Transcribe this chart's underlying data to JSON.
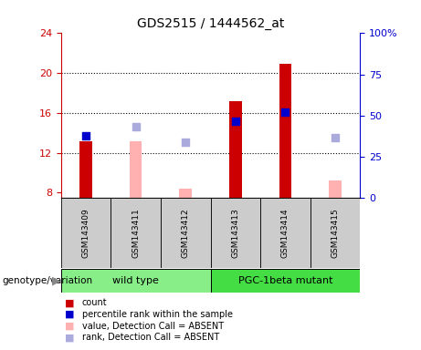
{
  "title": "GDS2515 / 1444562_at",
  "samples": [
    "GSM143409",
    "GSM143411",
    "GSM143412",
    "GSM143413",
    "GSM143414",
    "GSM143415"
  ],
  "red_bars": [
    13.2,
    null,
    null,
    17.2,
    20.9,
    null
  ],
  "blue_squares": [
    13.7,
    null,
    null,
    15.2,
    16.1,
    null
  ],
  "pink_bars": [
    null,
    13.2,
    8.4,
    null,
    null,
    9.2
  ],
  "lavender_squares": [
    null,
    14.6,
    13.1,
    null,
    null,
    13.5
  ],
  "ylim_left": [
    7.5,
    24
  ],
  "ylim_right": [
    0,
    100
  ],
  "yticks_left": [
    8,
    12,
    16,
    20,
    24
  ],
  "yticks_right": [
    0,
    25,
    50,
    75,
    100
  ],
  "ytick_labels_right": [
    "0",
    "25",
    "50",
    "75",
    "100%"
  ],
  "left_tick_color": "#cc0000",
  "right_tick_color": "#0000cc",
  "red_color": "#cc0000",
  "pink_color": "#ffb0b0",
  "blue_color": "#0000cc",
  "lavender_color": "#aaaadd",
  "wt_color": "#88ee88",
  "pgc_color": "#44dd44",
  "sample_box_color": "#cccccc",
  "legend_items": [
    {
      "label": "count",
      "color": "#cc0000"
    },
    {
      "label": "percentile rank within the sample",
      "color": "#0000cc"
    },
    {
      "label": "value, Detection Call = ABSENT",
      "color": "#ffb0b0"
    },
    {
      "label": "rank, Detection Call = ABSENT",
      "color": "#aaaadd"
    }
  ],
  "genotype_label": "genotype/variation",
  "bar_width": 0.25,
  "sq_size": 35
}
